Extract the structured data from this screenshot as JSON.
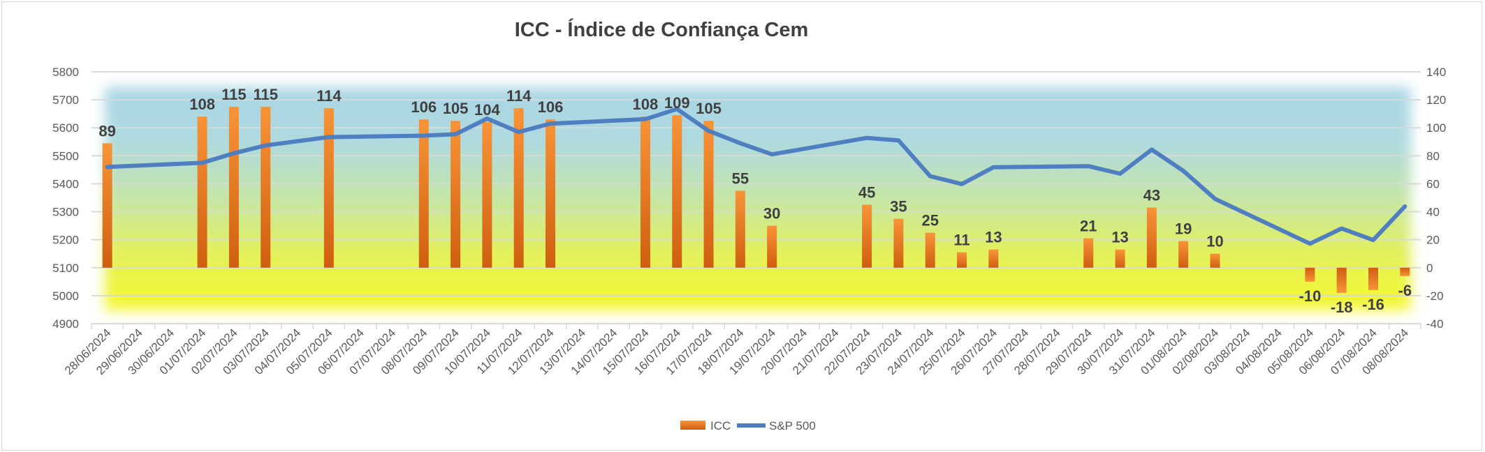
{
  "chart_data": {
    "type": "bar+line",
    "title": "ICC - Índice de Confiança Cem",
    "categories": [
      "28/06/2024",
      "29/06/2024",
      "30/06/2024",
      "01/07/2024",
      "02/07/2024",
      "03/07/2024",
      "04/07/2024",
      "05/07/2024",
      "06/07/2024",
      "07/07/2024",
      "08/07/2024",
      "09/07/2024",
      "10/07/2024",
      "11/07/2024",
      "12/07/2024",
      "13/07/2024",
      "14/07/2024",
      "15/07/2024",
      "16/07/2024",
      "17/07/2024",
      "18/07/2024",
      "19/07/2024",
      "20/07/2024",
      "21/07/2024",
      "22/07/2024",
      "23/07/2024",
      "24/07/2024",
      "25/07/2024",
      "26/07/2024",
      "27/07/2024",
      "28/07/2024",
      "29/07/2024",
      "30/07/2024",
      "31/07/2024",
      "01/08/2024",
      "02/08/2024",
      "03/08/2024",
      "04/08/2024",
      "05/08/2024",
      "06/08/2024",
      "07/08/2024",
      "08/08/2024"
    ],
    "series": [
      {
        "name": "ICC",
        "type": "bar",
        "axis": "right",
        "color": "#f28a2e",
        "values": [
          89,
          null,
          null,
          108,
          115,
          115,
          null,
          114,
          null,
          null,
          106,
          105,
          104,
          114,
          106,
          null,
          null,
          108,
          109,
          105,
          55,
          30,
          null,
          null,
          45,
          35,
          25,
          11,
          13,
          null,
          null,
          21,
          13,
          43,
          19,
          10,
          null,
          null,
          -10,
          -18,
          -16,
          -6
        ]
      },
      {
        "name": "S&P 500",
        "type": "line",
        "axis": "left",
        "color": "#4f7fc0",
        "values": [
          5460,
          null,
          null,
          5475,
          5509,
          5537,
          null,
          5567,
          null,
          null,
          5572,
          5577,
          5633,
          5585,
          5615,
          null,
          null,
          5631,
          5667,
          5589,
          5545,
          5505,
          null,
          null,
          5564,
          5555,
          5427,
          5399,
          5459,
          null,
          null,
          5463,
          5436,
          5522,
          5446,
          5346,
          null,
          null,
          5186,
          5240,
          5199,
          5319
        ]
      }
    ],
    "left_axis": {
      "min": 4900,
      "max": 5800,
      "step": 100,
      "ticks": [
        "4900",
        "5000",
        "5100",
        "5200",
        "5300",
        "5400",
        "5500",
        "5600",
        "5700",
        "5800"
      ]
    },
    "right_axis": {
      "min": -40,
      "max": 140,
      "step": 20,
      "ticks": [
        "-40",
        "-20",
        "0",
        "20",
        "40",
        "60",
        "80",
        "100",
        "120",
        "140"
      ]
    },
    "grid": true,
    "legend": {
      "position": "bottom",
      "entries": [
        "ICC",
        "S&P 500"
      ]
    },
    "background": {
      "top": "#a9d6e5",
      "middle": "#c9e6a0",
      "bottom": "#f3f52a"
    }
  }
}
